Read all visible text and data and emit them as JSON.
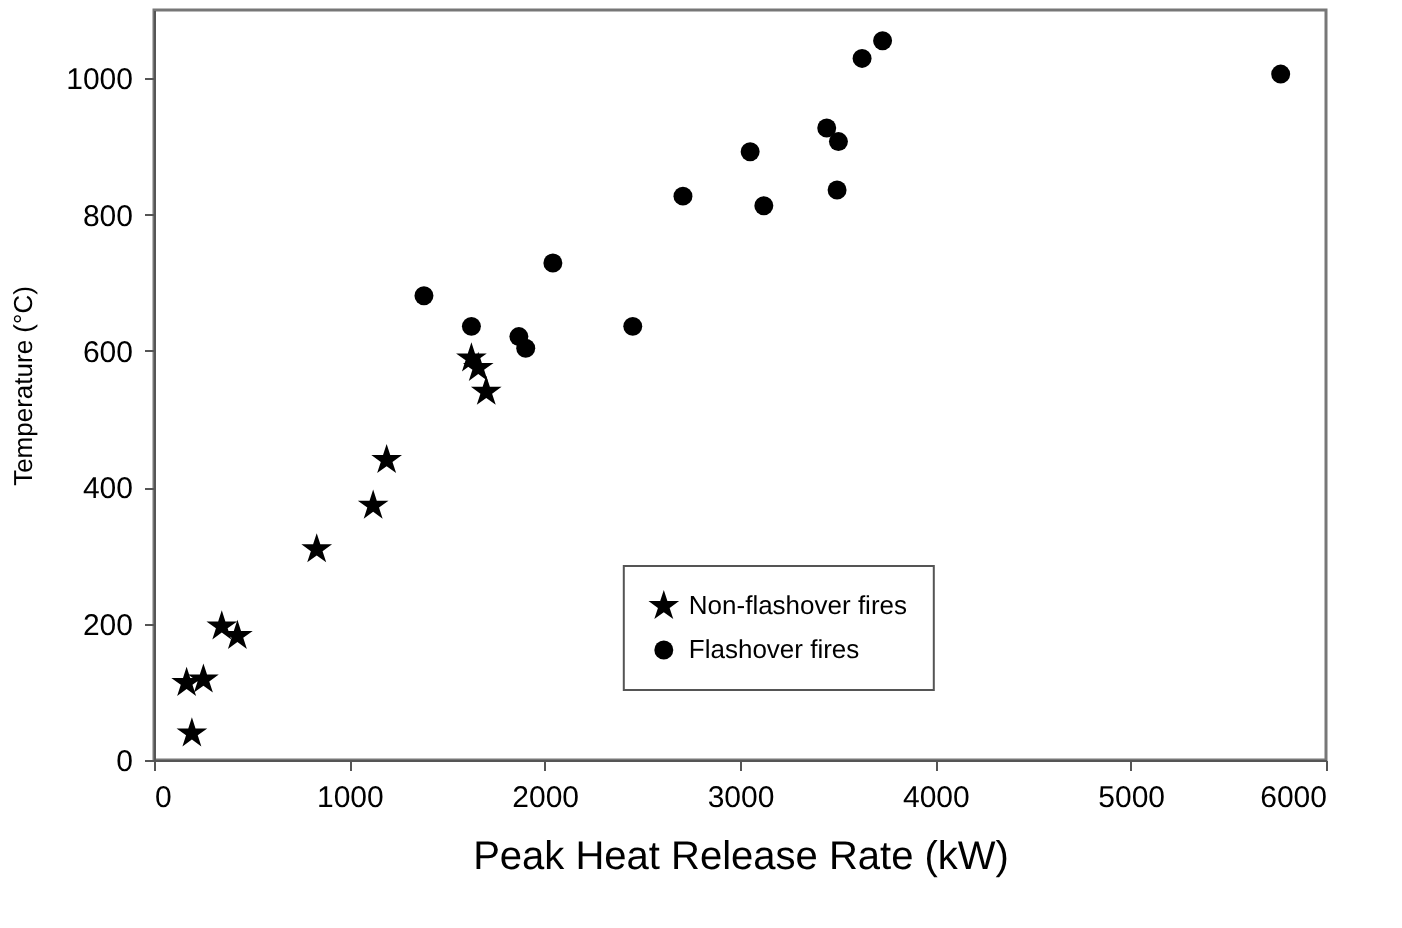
{
  "chart_data": {
    "type": "scatter",
    "xlabel": "Peak Heat Release Rate (kW)",
    "ylabel": "Temperature (°C)",
    "xlim": [
      0,
      6000
    ],
    "xticks": [
      0,
      1000,
      2000,
      3000,
      4000,
      5000,
      6000
    ],
    "ylim": [
      0,
      1100
    ],
    "yticks": [
      0,
      200,
      400,
      600,
      800,
      1000
    ],
    "grid": false,
    "legend": "bottom",
    "series": [
      {
        "name": "Non-flashover fires",
        "color": "#000000",
        "marker": "star",
        "x": [
          194,
          167,
          253,
          347,
          427,
          833,
          1122,
          1191,
          1625,
          1660,
          1701
        ],
        "values": [
          39,
          113,
          118,
          196,
          182,
          309,
          373,
          440,
          589,
          575,
          540
        ]
      },
      {
        "name": "Flashover fires",
        "color": "#000000",
        "marker": "circle",
        "x": [
          1382,
          1625,
          1868,
          1903,
          2042,
          2451,
          2708,
          3052,
          3122,
          3444,
          3504,
          3497,
          3625,
          3730,
          5768
        ],
        "values": [
          681,
          636,
          621,
          604,
          729,
          636,
          827,
          892,
          813,
          927,
          907,
          836,
          1029,
          1055,
          1006
        ]
      }
    ]
  }
}
